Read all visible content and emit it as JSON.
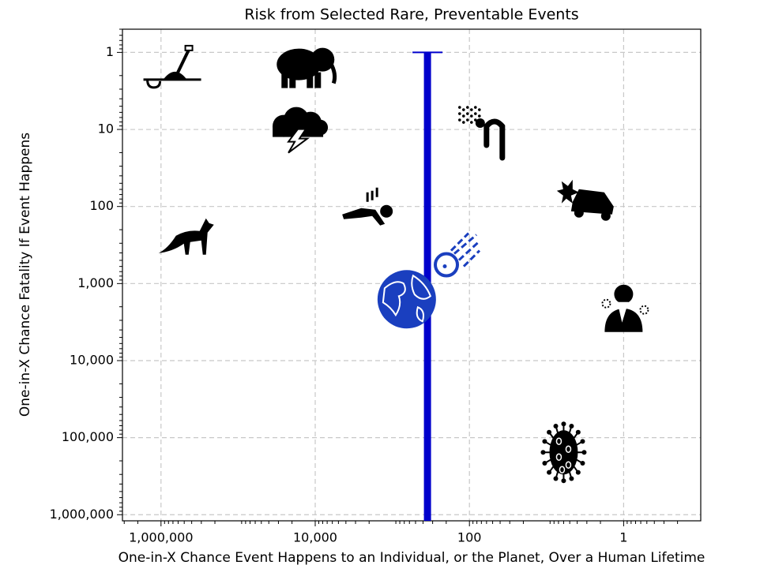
{
  "chart_data": {
    "type": "scatter",
    "title": "Risk from Selected Rare, Preventable Events",
    "x_label": "One-in-X Chance Event Happens to an Individual, or the Planet, Over a Human Lifetime",
    "y_label": "One-in-X Chance Fatality If Event Happens",
    "x_scale": "log",
    "y_scale": "log",
    "xlim": [
      3162278,
      0.1
    ],
    "ylim": [
      0.5,
      1200000
    ],
    "xticks": [
      {
        "value": 1000000,
        "label": "1,000,000"
      },
      {
        "value": 10000,
        "label": "10,000"
      },
      100,
      1
    ],
    "yticks": [
      1,
      10,
      100,
      {
        "value": 1000,
        "label": "1,000"
      },
      {
        "value": 10000,
        "label": "10,000"
      },
      {
        "value": 100000,
        "label": "100,000"
      },
      {
        "value": 1000000,
        "label": "1,000,000"
      }
    ],
    "grid": true,
    "x": [
      740000,
      13500,
      16000,
      66,
      3,
      2100,
      460000,
      150,
      650,
      1,
      6
    ],
    "y": [
      1.7,
      1.5,
      9,
      10,
      83,
      105,
      240,
      430,
      1600,
      2000,
      155000
    ],
    "colors": [
      "#000000",
      "#000000",
      "#000000",
      "#000000",
      "#000000",
      "#000000",
      "#000000",
      "#1a3fbf",
      "#1a3fbf",
      "#000000",
      "#000000"
    ],
    "vline": {
      "x": 350,
      "ymin": 1,
      "color": "#0000cc"
    }
  }
}
